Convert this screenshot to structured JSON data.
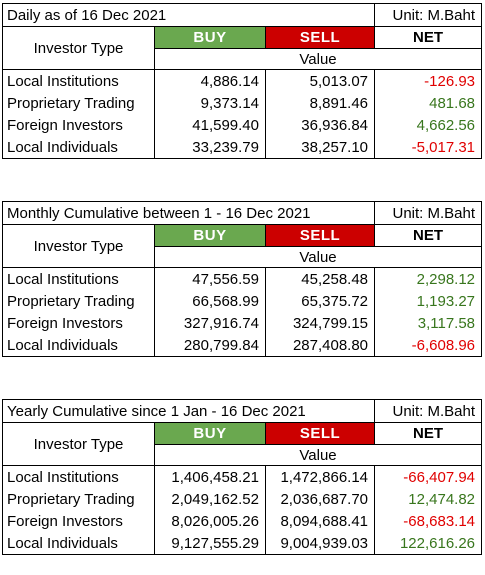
{
  "unit_label": "Unit: M.Baht",
  "header": {
    "investor_type": "Investor Type",
    "buy": "BUY",
    "sell": "SELL",
    "net": "NET",
    "value": "Value"
  },
  "tables": [
    {
      "title": "Daily as of 16 Dec 2021",
      "rows": [
        {
          "label": "Local Institutions",
          "buy": "4,886.14",
          "sell": "5,013.07",
          "net": "-126.93"
        },
        {
          "label": "Proprietary Trading",
          "buy": "9,373.14",
          "sell": "8,891.46",
          "net": "481.68"
        },
        {
          "label": "Foreign Investors",
          "buy": "41,599.40",
          "sell": "36,936.84",
          "net": "4,662.56"
        },
        {
          "label": "Local Individuals",
          "buy": "33,239.79",
          "sell": "38,257.10",
          "net": "-5,017.31"
        }
      ]
    },
    {
      "title": "Monthly Cumulative between 1 - 16 Dec 2021",
      "rows": [
        {
          "label": "Local Institutions",
          "buy": "47,556.59",
          "sell": "45,258.48",
          "net": "2,298.12"
        },
        {
          "label": "Proprietary Trading",
          "buy": "66,568.99",
          "sell": "65,375.72",
          "net": "1,193.27"
        },
        {
          "label": "Foreign Investors",
          "buy": "327,916.74",
          "sell": "324,799.15",
          "net": "3,117.58"
        },
        {
          "label": "Local Individuals",
          "buy": "280,799.84",
          "sell": "287,408.80",
          "net": "-6,608.96"
        }
      ]
    },
    {
      "title": "Yearly Cumulative since 1 Jan - 16 Dec 2021",
      "rows": [
        {
          "label": "Local Institutions",
          "buy": "1,406,458.21",
          "sell": "1,472,866.14",
          "net": "-66,407.94"
        },
        {
          "label": "Proprietary Trading",
          "buy": "2,049,162.52",
          "sell": "2,036,687.70",
          "net": "12,474.82"
        },
        {
          "label": "Foreign Investors",
          "buy": "8,026,005.26",
          "sell": "8,094,688.41",
          "net": "-68,683.14"
        },
        {
          "label": "Local Individuals",
          "buy": "9,127,555.29",
          "sell": "9,004,939.03",
          "net": "122,616.26"
        }
      ]
    }
  ],
  "colors": {
    "buy": "#6aa84f",
    "sell": "#cc0000",
    "positive": "#38761d",
    "negative": "#e00000"
  }
}
